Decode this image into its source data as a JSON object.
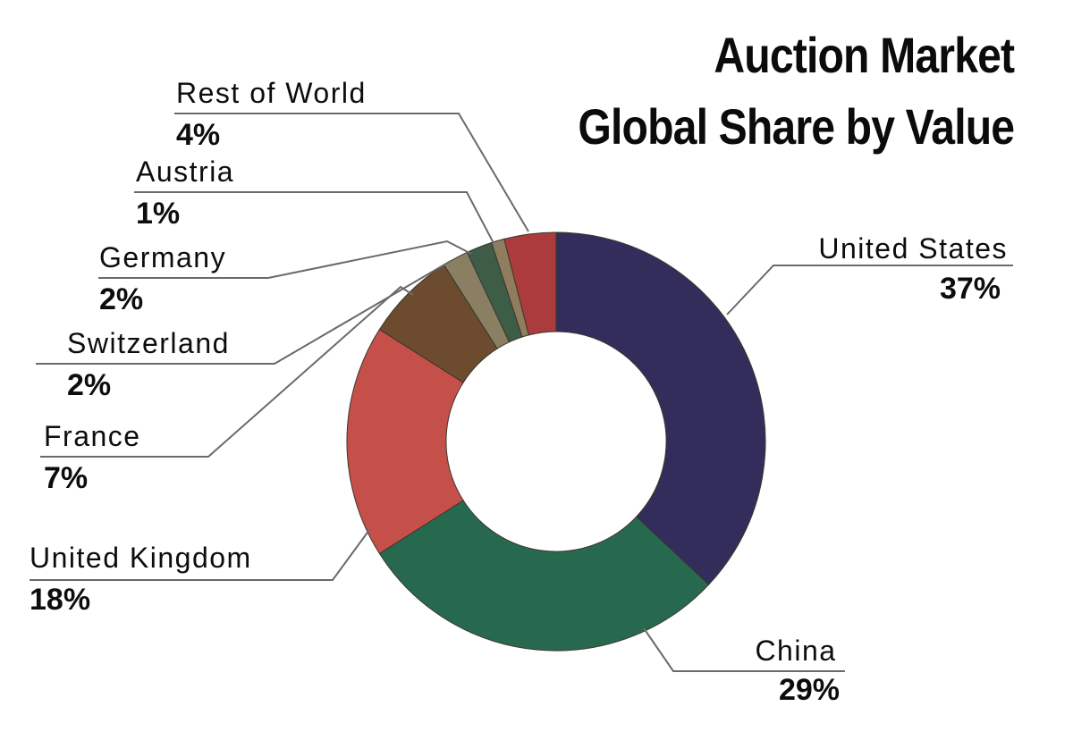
{
  "title": {
    "line1": "Auction Market",
    "line2": "Global Share by Value"
  },
  "chart_data": {
    "type": "pie",
    "variant": "donut",
    "title": "Auction Market Global Share by Value",
    "unit": "%",
    "direction": "clockwise",
    "start_angle_deg": 0,
    "legend_position": "callout-labels",
    "slices": [
      {
        "label": "United States",
        "value": 37,
        "pct_label": "37%",
        "color": "#332d5b"
      },
      {
        "label": "China",
        "value": 29,
        "pct_label": "29%",
        "color": "#27694f"
      },
      {
        "label": "United Kingdom",
        "value": 18,
        "pct_label": "18%",
        "color": "#c5504a"
      },
      {
        "label": "France",
        "value": 7,
        "pct_label": "7%",
        "color": "#6d4b2e"
      },
      {
        "label": "Switzerland",
        "value": 2,
        "pct_label": "2%",
        "color": "#8a7f63"
      },
      {
        "label": "Germany",
        "value": 2,
        "pct_label": "2%",
        "color": "#3e5d46"
      },
      {
        "label": "Austria",
        "value": 1,
        "pct_label": "1%",
        "color": "#8f7d5e"
      },
      {
        "label": "Rest of World",
        "value": 4,
        "pct_label": "4%",
        "color": "#ac3b3d"
      }
    ],
    "leader_line_color": "#6a6a6a",
    "slice_outline_color": "#3c362e",
    "text_color": "#0d0d0d",
    "background_color": "#ffffff"
  }
}
